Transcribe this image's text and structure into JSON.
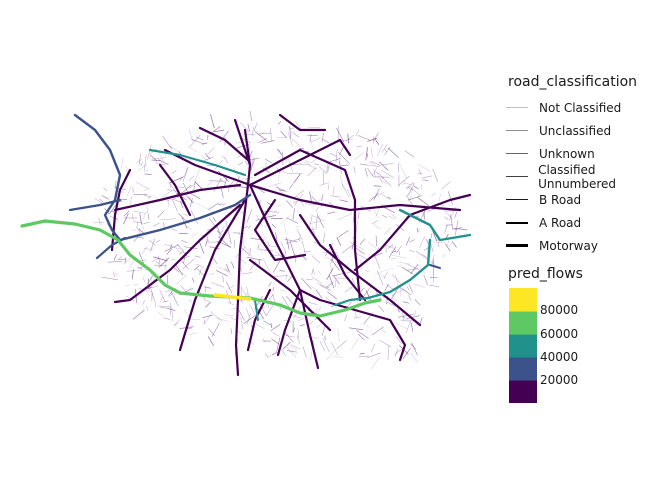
{
  "legend": {
    "road_title": "road_classification",
    "road_items": [
      {
        "label": "Not Classified",
        "width": 0.3,
        "opacity": 0.25
      },
      {
        "label": "Unclassified",
        "width": 0.6,
        "opacity": 0.45
      },
      {
        "label": "Unknown",
        "width": 0.8,
        "opacity": 0.6
      },
      {
        "label": "Classified Unnumbered",
        "width": 1.0,
        "opacity": 0.75
      },
      {
        "label": "B Road",
        "width": 1.3,
        "opacity": 0.9
      },
      {
        "label": "A Road",
        "width": 2.0,
        "opacity": 1.0
      },
      {
        "label": "Motorway",
        "width": 3.0,
        "opacity": 1.0
      }
    ],
    "flow_title": "pred_flows",
    "flow_breaks": [
      "80000",
      "60000",
      "40000",
      "20000"
    ],
    "flow_colors": [
      "#fde725",
      "#5ec962",
      "#21918c",
      "#3b528b",
      "#440154"
    ]
  }
}
